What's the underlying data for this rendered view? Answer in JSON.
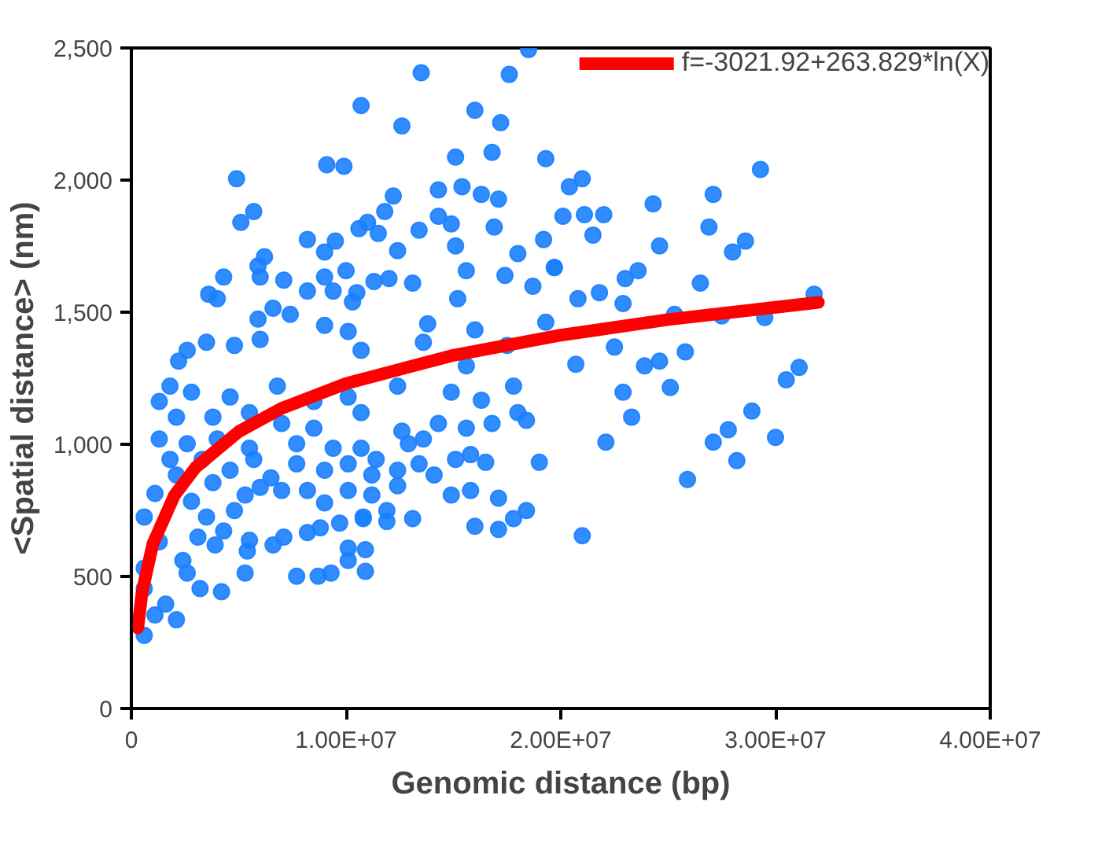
{
  "chart_data": {
    "type": "scatter",
    "xlabel": "Genomic distance (bp)",
    "ylabel": "<Spatial distance> (nm)",
    "xlim": [
      0,
      40000000.0
    ],
    "ylim": [
      0,
      2500
    ],
    "xticks": [
      0,
      {
        "value": 10000000.0,
        "label": "1.00E+07"
      },
      {
        "value": 20000000.0,
        "label": "2.00E+07"
      },
      {
        "value": 30000000.0,
        "label": "3.00E+07"
      },
      {
        "value": 40000000.0,
        "label": "4.00E+07"
      }
    ],
    "yticks": [
      0,
      500,
      {
        "value": 1000,
        "label": "1,000"
      },
      {
        "value": 1500,
        "label": "1,500"
      },
      {
        "value": 2000,
        "label": "2,000"
      },
      {
        "value": 2500,
        "label": "2,500"
      }
    ],
    "grid": false,
    "legend": "top right",
    "marker": "circle",
    "series": [
      {
        "color": "#1a80ff",
        "x": [
          29300000.0,
          27100000.0,
          24300000.0,
          26900000.0,
          28600000.0,
          28000000.0,
          24600000.0,
          26500000.0,
          23600000.0,
          23000000.0,
          21800000.0,
          22900000.0,
          31800000.0,
          29500000.0,
          27500000.0,
          25300000.0,
          22500000.0,
          25800000.0,
          24600000.0,
          23900000.0,
          20700000.0,
          31100000.0,
          30500000.0,
          25100000.0,
          22900000.0,
          23300000.0,
          28900000.0,
          27800000.0,
          27100000.0,
          30000000.0,
          28200000.0,
          25900000.0,
          22100000.0,
          21000000.0,
          21000000.0,
          20400000.0,
          21100000.0,
          22000000.0,
          21500000.0,
          20100000.0,
          19700000.0,
          20800000.0,
          18500000.0,
          13500000.0,
          17600000.0,
          10700000.0,
          16000000.0,
          12600000.0,
          17200000.0,
          16800000.0,
          15100000.0,
          19300000.0,
          9100000.0,
          9900000.0,
          4900000.0,
          5700000.0,
          5100000.0,
          14300000.0,
          15400000.0,
          16300000.0,
          17100000.0,
          12200000.0,
          11800000.0,
          11000000.0,
          10600000.0,
          11500000.0,
          14300000.0,
          14900000.0,
          16900000.0,
          13400000.0,
          8200000.0,
          9500000.0,
          9000000.0,
          12400000.0,
          15100000.0,
          19200000.0,
          18000000.0,
          6200000.0,
          5900000.0,
          6000000.0,
          4300000.0,
          3600000.0,
          4000000.0,
          7100000.0,
          8200000.0,
          9000000.0,
          10000000.0,
          9400000.0,
          10500000.0,
          11300000.0,
          12000000.0,
          13100000.0,
          10300000.0,
          15600000.0,
          15200000.0,
          17400000.0,
          18700000.0,
          19700000.0,
          6600000.0,
          5900000.0,
          7400000.0,
          13800000.0,
          16000000.0,
          19300000.0,
          2600000.0,
          3500000.0,
          4800000.0,
          6000000.0,
          9000000.0,
          10100000.0,
          13600000.0,
          17500000.0,
          2200000.0,
          10700000.0,
          15600000.0,
          600000.0,
          2100000.0,
          1100000.0,
          600000.0,
          1600000.0,
          3200000.0,
          4200000.0,
          2600000.0,
          5300000.0,
          7700000.0,
          8700000.0,
          9300000.0,
          10900000.0,
          10100000.0,
          10100000.0,
          10900000.0,
          5400000.0,
          6600000.0,
          7100000.0,
          3900000.0,
          5500000.0,
          4300000.0,
          8200000.0,
          8800000.0,
          9700000.0,
          10800000.0,
          11900000.0,
          13100000.0,
          1300000.0,
          2400000.0,
          3100000.0,
          3500000.0,
          4800000.0,
          2800000.0,
          1100000.0,
          2100000.0,
          3800000.0,
          5300000.0,
          6000000.0,
          7000000.0,
          8200000.0,
          9000000.0,
          10100000.0,
          11200000.0,
          10800000.0,
          11900000.0,
          12400000.0,
          14900000.0,
          15800000.0,
          16000000.0,
          17100000.0,
          17100000.0,
          17800000.0,
          18400000.0,
          19000000.0,
          16500000.0,
          15800000.0,
          15100000.0,
          14100000.0,
          13400000.0,
          12400000.0,
          11200000.0,
          10100000.0,
          9000000.0,
          7700000.0,
          6500000.0,
          5700000.0,
          4600000.0,
          3300000.0,
          1800000.0,
          1300000.0,
          2600000.0,
          4000000.0,
          5500000.0,
          7700000.0,
          9400000.0,
          10700000.0,
          11400000.0,
          12900000.0,
          13600000.0,
          15600000.0,
          16800000.0,
          18000000.0,
          18400000.0,
          14300000.0,
          12600000.0,
          10700000.0,
          8500000.0,
          7000000.0,
          5500000.0,
          3800000.0,
          2100000.0,
          1300000.0,
          2800000.0,
          4600000.0,
          6800000.0,
          8500000.0,
          10100000.0,
          12400000.0,
          14900000.0,
          16300000.0,
          17800000.0,
          1800000.0,
          600000.0,
          600000.0
        ],
        "values": [
          2040,
          1946,
          1910,
          1822,
          1769,
          1728,
          1751,
          1610,
          1657,
          1627,
          1574,
          1533,
          1568,
          1480,
          1486,
          1492,
          1368,
          1350,
          1315,
          1297,
          1303,
          1291,
          1244,
          1215,
          1197,
          1103,
          1126,
          1055,
          1008,
          1026,
          938,
          867,
          1008,
          654,
          2005,
          1975,
          1869,
          1869,
          1792,
          1863,
          1669,
          1551,
          2494,
          2406,
          2400,
          2282,
          2264,
          2205,
          2217,
          2105,
          2087,
          2081,
          2058,
          2052,
          2005,
          1881,
          1840,
          1963,
          1975,
          1946,
          1928,
          1940,
          1881,
          1840,
          1816,
          1798,
          1863,
          1834,
          1822,
          1810,
          1775,
          1769,
          1728,
          1733,
          1751,
          1775,
          1722,
          1710,
          1675,
          1633,
          1633,
          1568,
          1551,
          1621,
          1580,
          1633,
          1657,
          1580,
          1574,
          1616,
          1627,
          1610,
          1539,
          1657,
          1551,
          1639,
          1598,
          1669,
          1515,
          1474,
          1492,
          1456,
          1433,
          1462,
          1356,
          1386,
          1374,
          1397,
          1450,
          1427,
          1386,
          1374,
          1315,
          1356,
          1297,
          277,
          336,
          354,
          454,
          395,
          454,
          442,
          513,
          513,
          501,
          501,
          513,
          519,
          560,
          607,
          601,
          596,
          619,
          649,
          619,
          637,
          672,
          666,
          684,
          702,
          719,
          708,
          719,
          631,
          560,
          649,
          725,
          749,
          784,
          814,
          884,
          855,
          808,
          837,
          825,
          825,
          778,
          825,
          808,
          725,
          749,
          843,
          808,
          825,
          690,
          796,
          678,
          719,
          749,
          932,
          932,
          961,
          943,
          884,
          926,
          902,
          884,
          926,
          902,
          926,
          873,
          943,
          902,
          943,
          943,
          1020,
          1002,
          1020,
          985,
          1002,
          985,
          985,
          943,
          1002,
          1020,
          1061,
          1079,
          1120,
          1091,
          1079,
          1050,
          1120,
          1061,
          1079,
          1120,
          1103,
          1103,
          1162,
          1197,
          1179,
          1220,
          1162,
          1179,
          1220,
          1197,
          1167,
          1220,
          1220,
          725,
          531
        ]
      },
      {
        "type": "line",
        "name": "f=-3021.92+263.829*ln(X)",
        "color": "#ff0000",
        "line_style": "solid",
        "marker": "none",
        "x": [
          300000.0,
          500000.0,
          1000000.0,
          2000000.0,
          3000000.0,
          5000000.0,
          7000000.0,
          10000000.0,
          15000000.0,
          20000000.0,
          25000000.0,
          32000000.0
        ],
        "values": [
          305,
          440,
          623,
          806,
          913,
          1048,
          1136,
          1230,
          1337,
          1413,
          1472,
          1537
        ]
      }
    ]
  }
}
